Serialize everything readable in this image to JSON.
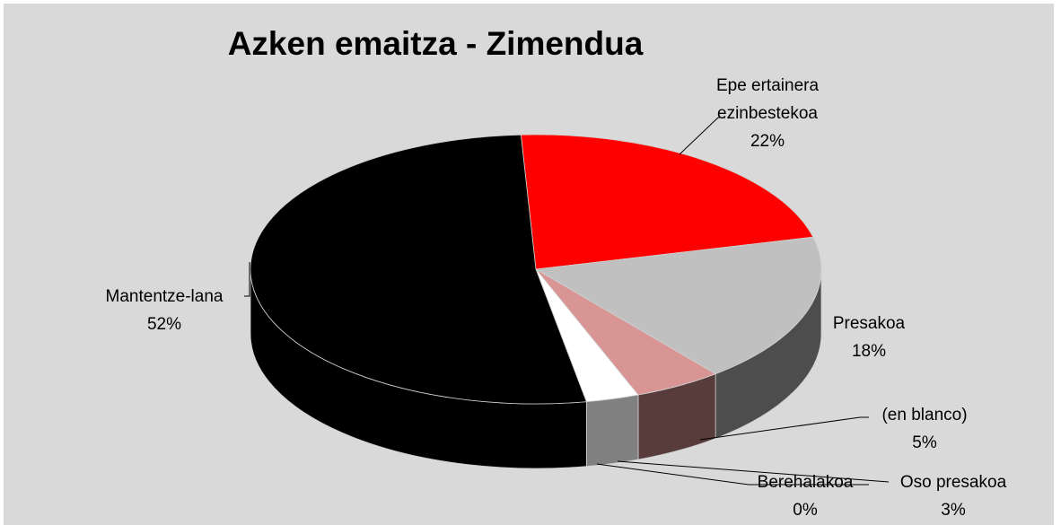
{
  "chart_data": {
    "type": "pie",
    "title": "Azken emaitza - Zimendua",
    "categories": [
      "Epe ertainera ezinbestekoa",
      "Presakoa",
      "(en blanco)",
      "Oso presakoa",
      "Berehalakoa",
      "Mantentze-lana"
    ],
    "values": [
      22,
      18,
      5,
      3,
      0,
      52
    ],
    "value_labels": [
      "22%",
      "18%",
      "5%",
      "3%",
      "0%",
      "52%"
    ],
    "colors": [
      "#ff0000",
      "#c0c0c0",
      "#d99594",
      "#ffffff",
      "#e6b9b8",
      "#000000"
    ]
  }
}
